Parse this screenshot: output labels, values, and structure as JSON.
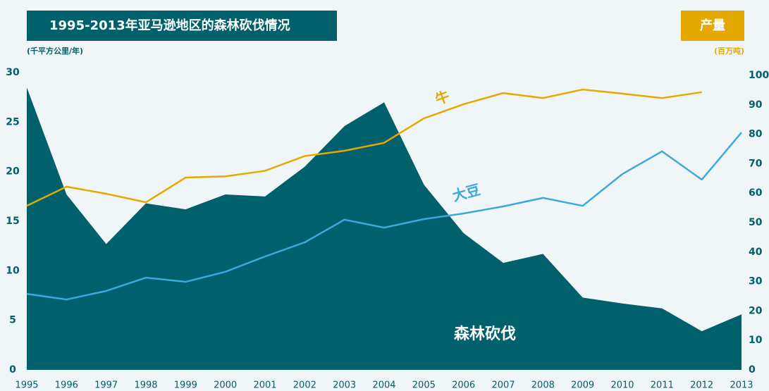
{
  "chart_data": {
    "type": "line",
    "title": "1995-2013年亚马逊地区的森林砍伐情况",
    "y2_title": "产量",
    "ylabel": "(千平方公里/年)",
    "y2label": "(百万吨)",
    "x": [
      1995,
      1996,
      1997,
      1998,
      1999,
      2000,
      2001,
      2002,
      2003,
      2004,
      2005,
      2006,
      2007,
      2008,
      2009,
      2010,
      2011,
      2012,
      2013
    ],
    "xlim": [
      1995,
      2013
    ],
    "ylim": [
      0,
      30
    ],
    "yticks": [
      0,
      5,
      10,
      15,
      20,
      25,
      30
    ],
    "y2lim": [
      0,
      100
    ],
    "y2ticks": [
      0,
      10,
      20,
      30,
      40,
      50,
      60,
      70,
      80,
      90,
      100
    ],
    "series": [
      {
        "name": "森林砍伐",
        "kind": "area",
        "color": "#00606b",
        "axis": "y",
        "values": [
          28.5,
          17.7,
          12.7,
          16.8,
          16.2,
          17.7,
          17.5,
          20.5,
          24.6,
          27.0,
          18.7,
          13.8,
          10.8,
          11.7,
          7.3,
          6.7,
          6.2,
          3.9,
          5.6
        ]
      },
      {
        "name": "牛",
        "kind": "line",
        "color": "#e5a800",
        "axis": "y2",
        "values": [
          55.7,
          62.2,
          59.8,
          56.9,
          65.3,
          65.7,
          67.6,
          72.6,
          74.4,
          77.1,
          85.4,
          90.2,
          94.0,
          92.3,
          95.2,
          93.8,
          92.3,
          94.3,
          null
        ]
      },
      {
        "name": "大豆",
        "kind": "line",
        "color": "#3ea8dc",
        "axis": "y2",
        "values": [
          25.8,
          23.9,
          26.8,
          31.3,
          29.9,
          33.3,
          38.5,
          43.3,
          51.0,
          48.3,
          51.2,
          53.1,
          55.5,
          58.4,
          55.7,
          66.5,
          74.2,
          64.6,
          80.6
        ]
      }
    ]
  }
}
